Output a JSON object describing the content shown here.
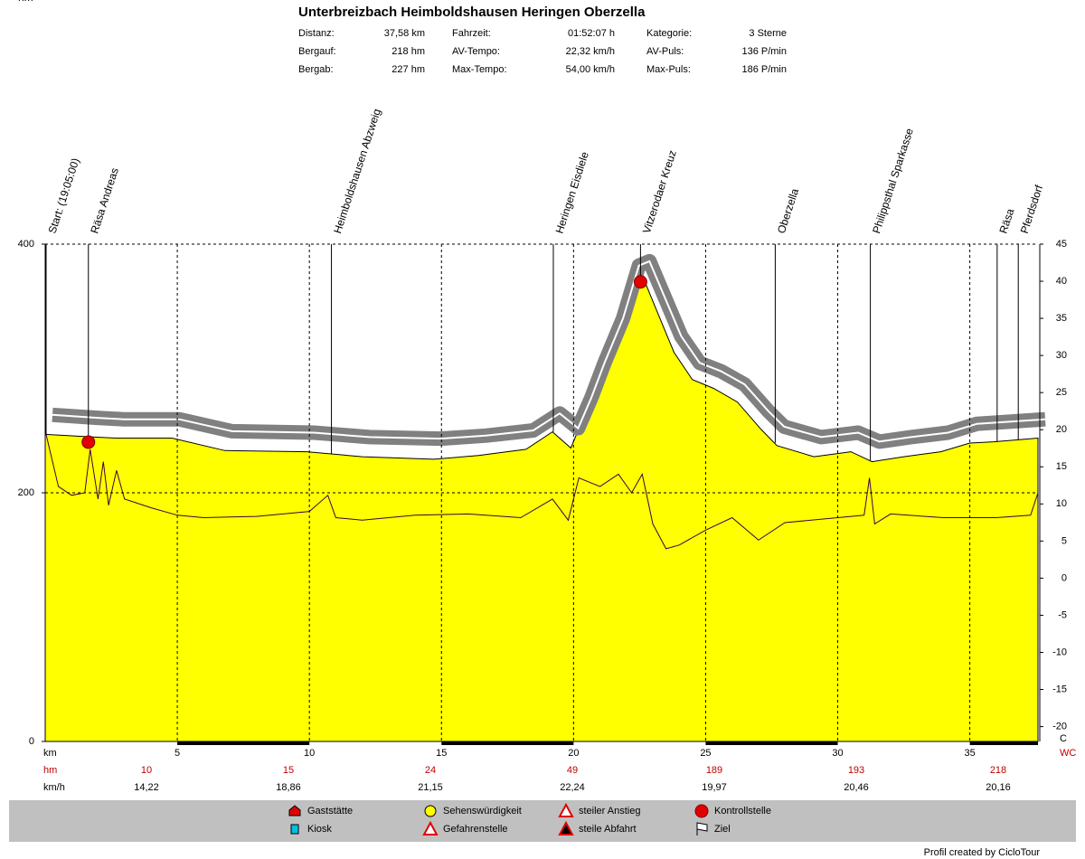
{
  "header": {
    "corner_label": "hm",
    "title": "Unterbreizbach Heimboldshausen Heringen Oberzella",
    "stats": [
      [
        {
          "label": "Distanz:",
          "value": "37,58 km"
        },
        {
          "label": "Bergauf:",
          "value": "218 hm"
        },
        {
          "label": "Bergab:",
          "value": "227 hm"
        }
      ],
      [
        {
          "label": "Fahrzeit:",
          "value": "01:52:07 h"
        },
        {
          "label": "AV-Tempo:",
          "value": "22,32 km/h"
        },
        {
          "label": "Max-Tempo:",
          "value": "54,00 km/h"
        }
      ],
      [
        {
          "label": "Kategorie:",
          "value": "3 Sterne"
        },
        {
          "label": "AV-Puls:",
          "value": "136 P/min"
        },
        {
          "label": "Max-Puls:",
          "value": "186 P/min"
        }
      ]
    ]
  },
  "chart_data": {
    "type": "area",
    "xlabel": "km",
    "y2label": "C",
    "y2label_extra": "WC",
    "x": [
      0,
      1.7,
      2.7,
      4.8,
      6.8,
      9.9,
      12,
      14.7,
      16.4,
      18.2,
      19.2,
      19.9,
      20.4,
      20.9,
      21.6,
      22.2,
      22.6,
      23.1,
      23.8,
      24.5,
      25.3,
      26.2,
      27.1,
      27.7,
      29.1,
      30.5,
      31.3,
      32.5,
      33.9,
      35,
      35.9,
      37.58
    ],
    "series": [
      {
        "color": "#ffff00",
        "fill": true,
        "values": [
          247,
          245,
          244,
          244,
          234,
          233,
          229,
          227,
          230,
          235,
          249,
          236,
          262,
          291,
          327,
          371,
          375,
          349,
          313,
          291,
          284,
          273,
          251,
          238,
          229,
          233,
          225,
          229,
          233,
          240,
          241,
          244
        ]
      },
      {
        "color": "#808080",
        "axis": "y2",
        "values": [
          22,
          21.6,
          21.4,
          21.4,
          19.8,
          19.6,
          19,
          18.8,
          19.2,
          19.9,
          22.2,
          20.2,
          24.3,
          29,
          35,
          42.1,
          42.7,
          38.5,
          32.6,
          29,
          27.9,
          26.1,
          22.5,
          20.4,
          19,
          19.6,
          18.4,
          19,
          19.6,
          20.8,
          21,
          21.4
        ]
      },
      {
        "color": "#400040",
        "x": [
          0,
          0.5,
          1,
          1.5,
          1.7,
          2,
          2.2,
          2.4,
          2.7,
          3,
          4,
          5,
          6,
          8,
          10,
          10.7,
          11,
          12,
          14,
          16,
          18,
          19.2,
          19.8,
          20.2,
          21,
          21.7,
          22.2,
          22.6,
          23,
          23.5,
          24,
          25,
          26,
          27,
          28,
          30,
          31,
          31.2,
          31.4,
          32,
          34,
          36,
          37.3,
          37.58
        ],
        "values": [
          250,
          205,
          198,
          200,
          235,
          195,
          225,
          190,
          218,
          195,
          188,
          182,
          180,
          181,
          185,
          198,
          180,
          178,
          182,
          183,
          180,
          195,
          178,
          212,
          205,
          215,
          200,
          215,
          175,
          155,
          158,
          170,
          180,
          162,
          176,
          180,
          182,
          212,
          175,
          183,
          180,
          180,
          182,
          200
        ]
      }
    ],
    "waypoints": [
      {
        "label": "Start: (19:05:00)",
        "km": 0
      },
      {
        "label": "Räsa Andreas",
        "km": 1.6
      },
      {
        "label": "Heimboldshausen Abzweig",
        "km": 10.8
      },
      {
        "label": "Heringen Eisdiele",
        "km": 19.2
      },
      {
        "label": "Vitzerodaer Kreuz",
        "km": 22.5
      },
      {
        "label": "Oberzella",
        "km": 27.6
      },
      {
        "label": "Philippsthal Sparkasse",
        "km": 31.2
      },
      {
        "label": "Räsa",
        "km": 36.0
      },
      {
        "label": "Pferdsdorf",
        "km": 36.8
      }
    ],
    "xlim": [
      0,
      37.58
    ],
    "xticks": [
      5,
      10,
      15,
      20,
      25,
      30,
      35
    ],
    "ylim": [
      0,
      400
    ],
    "yticks": [
      0,
      200,
      400
    ],
    "y2lim": [
      -22,
      45
    ],
    "y2ticks": [
      -20,
      -15,
      -10,
      -5,
      0,
      5,
      10,
      15,
      20,
      25,
      30,
      35,
      40,
      45
    ],
    "grid": true
  },
  "segments": {
    "hm_label": "hm",
    "kmh_label": "km/h",
    "hm": [
      10,
      15,
      24,
      49,
      189,
      193,
      218
    ],
    "kmh": [
      "14,22",
      "18,86",
      "21,15",
      "22,24",
      "19,97",
      "20,46",
      "20,16"
    ]
  },
  "legend": [
    "Gaststätte",
    "Kiosk",
    "Sehenswürdigkeit",
    "Gefahrenstelle",
    "steiler Anstieg",
    "steile Abfahrt",
    "Kontrollstelle",
    "Ziel"
  ],
  "footer": "Profil created by CicloTour"
}
